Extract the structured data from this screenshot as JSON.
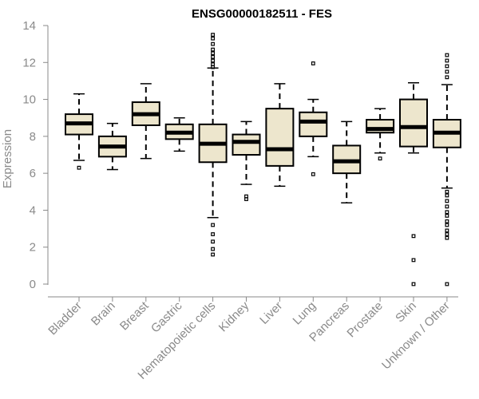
{
  "chart_data": {
    "type": "boxplot",
    "title": "ENSG00000182511 - FES",
    "xlabel": "",
    "ylabel": "Expression",
    "ylim": [
      0,
      14
    ],
    "yticks": [
      0,
      2,
      4,
      6,
      8,
      10,
      12,
      14
    ],
    "grid": false,
    "legend": "none",
    "colors": {
      "box_fill": "#ede6cd",
      "box_stroke": "#000000",
      "median": "#000000",
      "axis": "#8a8a8a"
    },
    "categories": [
      "Bladder",
      "Brain",
      "Breast",
      "Gastric",
      "Hematopoietic cells",
      "Kidney",
      "Liver",
      "Lung",
      "Pancreas",
      "Prostate",
      "Skin",
      "Unknown / Other"
    ],
    "boxes": [
      {
        "category": "Bladder",
        "whisker_low": 6.7,
        "q1": 8.1,
        "median": 8.7,
        "q3": 9.2,
        "whisker_high": 10.3,
        "outliers": [
          6.3
        ]
      },
      {
        "category": "Brain",
        "whisker_low": 6.2,
        "q1": 6.9,
        "median": 7.45,
        "q3": 8.0,
        "whisker_high": 8.7,
        "outliers": []
      },
      {
        "category": "Breast",
        "whisker_low": 6.8,
        "q1": 8.6,
        "median": 9.2,
        "q3": 9.85,
        "whisker_high": 10.85,
        "outliers": []
      },
      {
        "category": "Gastric",
        "whisker_low": 7.2,
        "q1": 7.85,
        "median": 8.2,
        "q3": 8.65,
        "whisker_high": 9.0,
        "outliers": []
      },
      {
        "category": "Hematopoietic cells",
        "whisker_low": 3.6,
        "q1": 6.6,
        "median": 7.6,
        "q3": 8.65,
        "whisker_high": 11.7,
        "outliers": [
          1.6,
          1.9,
          2.3,
          2.7,
          3.2,
          11.75,
          11.9,
          12.1,
          12.3,
          12.5,
          12.7,
          13.0,
          13.3,
          13.5
        ]
      },
      {
        "category": "Kidney",
        "whisker_low": 5.4,
        "q1": 7.0,
        "median": 7.7,
        "q3": 8.1,
        "whisker_high": 8.8,
        "outliers": [
          4.6,
          4.75
        ]
      },
      {
        "category": "Liver",
        "whisker_low": 5.3,
        "q1": 6.4,
        "median": 7.3,
        "q3": 9.5,
        "whisker_high": 10.85,
        "outliers": []
      },
      {
        "category": "Lung",
        "whisker_low": 6.9,
        "q1": 8.0,
        "median": 8.8,
        "q3": 9.3,
        "whisker_high": 10.0,
        "outliers": [
          5.95,
          11.95
        ]
      },
      {
        "category": "Pancreas",
        "whisker_low": 4.4,
        "q1": 6.0,
        "median": 6.65,
        "q3": 7.5,
        "whisker_high": 8.8,
        "outliers": []
      },
      {
        "category": "Prostate",
        "whisker_low": 7.1,
        "q1": 8.2,
        "median": 8.4,
        "q3": 8.9,
        "whisker_high": 9.5,
        "outliers": [
          6.8
        ]
      },
      {
        "category": "Skin",
        "whisker_low": 7.1,
        "q1": 7.45,
        "median": 8.5,
        "q3": 10.0,
        "whisker_high": 10.9,
        "outliers": [
          0.0,
          1.3,
          2.6
        ]
      },
      {
        "category": "Unknown / Other",
        "whisker_low": 5.2,
        "q1": 7.4,
        "median": 8.2,
        "q3": 8.9,
        "whisker_high": 10.8,
        "outliers": [
          0.0,
          2.5,
          2.7,
          2.9,
          3.2,
          3.4,
          3.7,
          3.9,
          4.2,
          4.5,
          4.8,
          5.0,
          11.2,
          11.5,
          11.8,
          12.1,
          12.4
        ]
      }
    ]
  }
}
